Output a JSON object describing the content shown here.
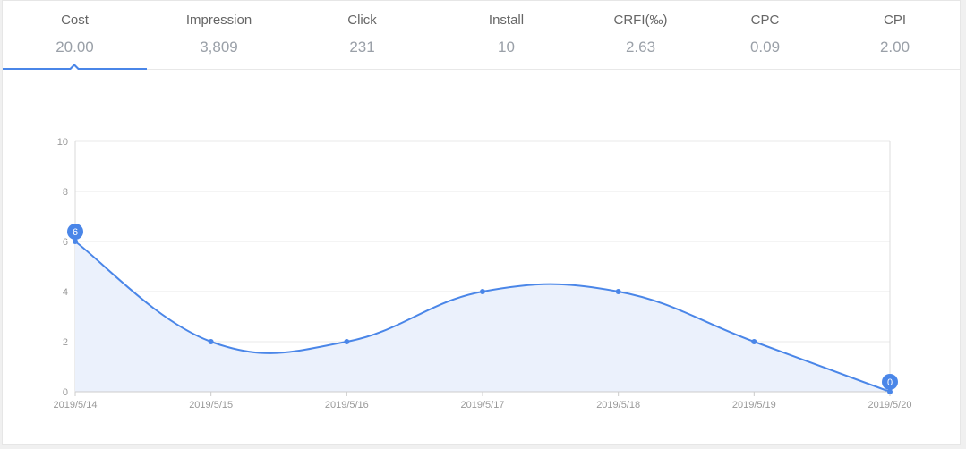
{
  "metrics": [
    {
      "label": "Cost",
      "value": "20.00",
      "active": true
    },
    {
      "label": "Impression",
      "value": "3,809",
      "active": false
    },
    {
      "label": "Click",
      "value": "231",
      "active": false
    },
    {
      "label": "Install",
      "value": "10",
      "active": false
    },
    {
      "label": "CRFI(‰)",
      "value": "2.63",
      "active": false
    },
    {
      "label": "CPC",
      "value": "0.09",
      "active": false
    },
    {
      "label": "CPI",
      "value": "2.00",
      "active": false
    }
  ],
  "colors": {
    "accent": "#4a86e8",
    "area_fill": "#ebf1fc",
    "grid": "#e8e8e8"
  },
  "chart_data": {
    "type": "line",
    "categories": [
      "2019/5/14",
      "2019/5/15",
      "2019/5/16",
      "2019/5/17",
      "2019/5/18",
      "2019/5/19",
      "2019/5/20"
    ],
    "series": [
      {
        "values": [
          6,
          2,
          2,
          4,
          4,
          2,
          0
        ]
      }
    ],
    "ylim": [
      0,
      10
    ],
    "yticks": [
      "0",
      "2",
      "4",
      "6",
      "8",
      "10"
    ],
    "grid": true,
    "smooth": true,
    "area": true,
    "point_labels": [
      {
        "index": 0,
        "text": "6"
      },
      {
        "index": 6,
        "text": "0"
      }
    ]
  }
}
